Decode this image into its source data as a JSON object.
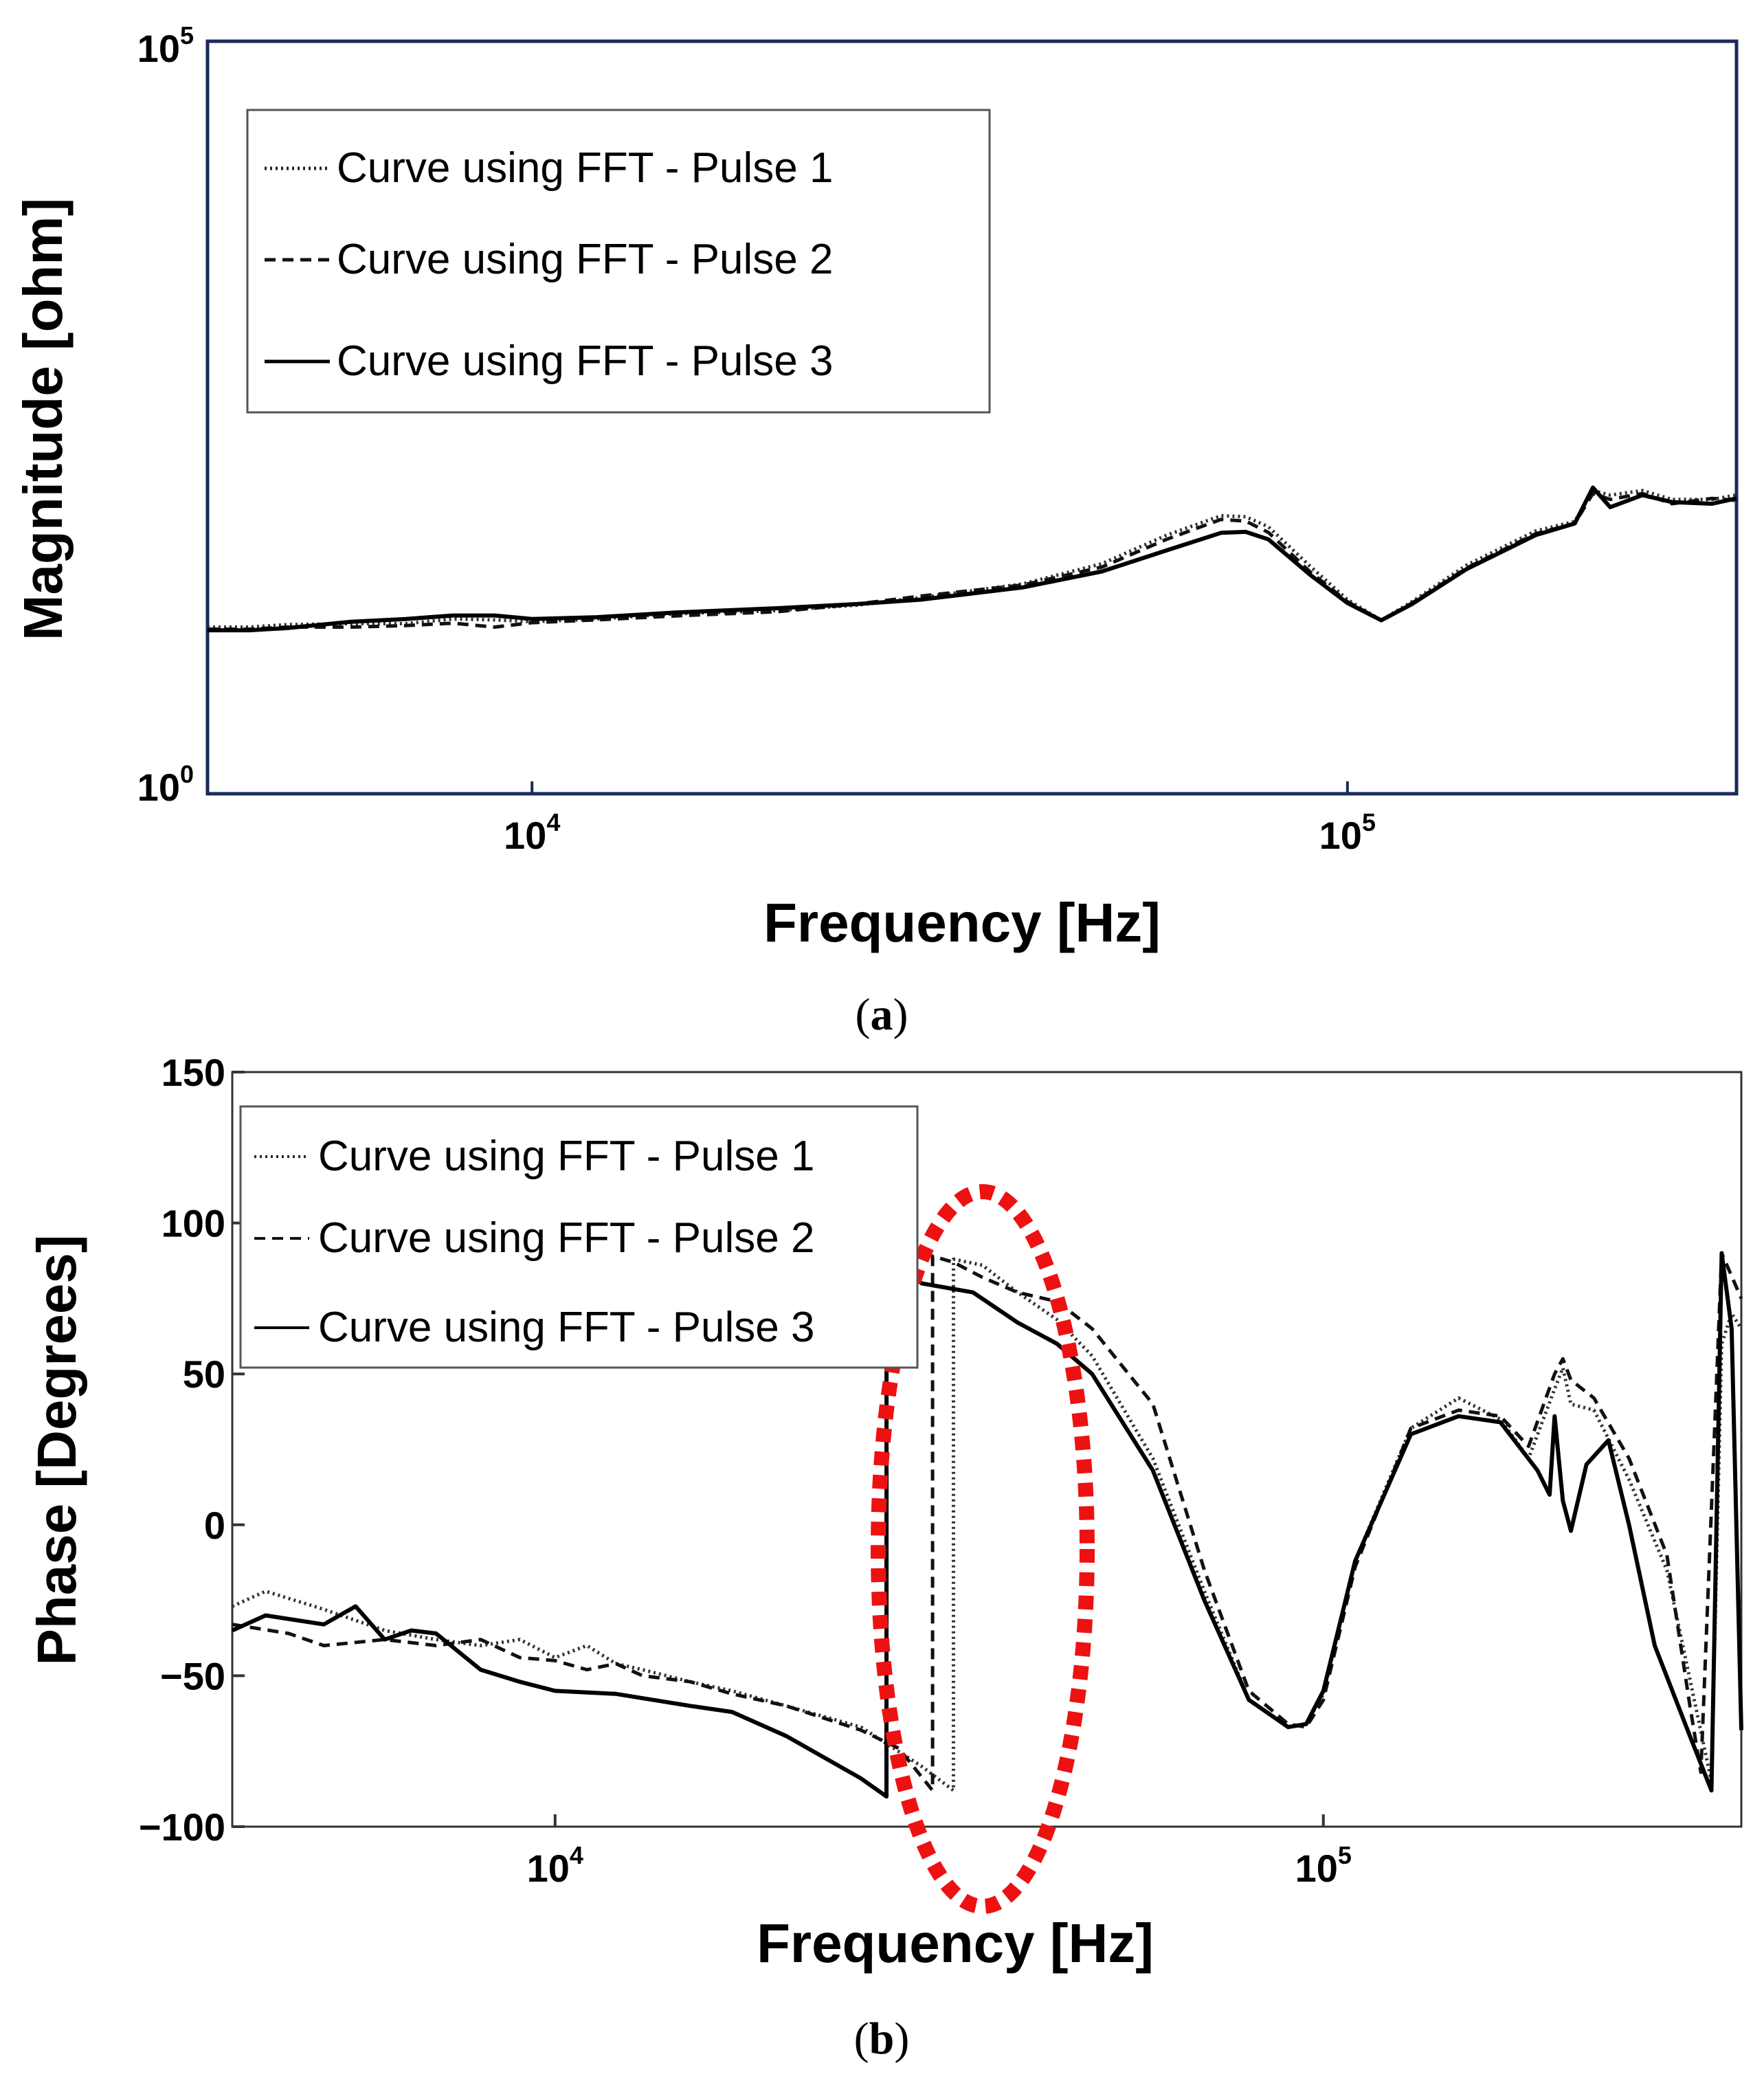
{
  "figure": {
    "captions": [
      "(a)",
      "(b)"
    ]
  },
  "chart_data": [
    {
      "type": "line",
      "panel_label": "(a)",
      "xscale": "log",
      "yscale": "log",
      "xlabel": "Frequency [Hz]",
      "ylabel": "Magnitude [ohm]",
      "xlim": [
        4000,
        300000
      ],
      "ylim": [
        1,
        100000
      ],
      "x_ticks": [
        {
          "base": "10",
          "exp": "4",
          "value": 10000
        },
        {
          "base": "10",
          "exp": "5",
          "value": 100000
        }
      ],
      "y_ticks": [
        {
          "base": "10",
          "exp": "0",
          "value": 1
        },
        {
          "base": "10",
          "exp": "5",
          "value": 100000
        }
      ],
      "legend_position": "top-left",
      "series": [
        {
          "name": "Curve using FFT - Pulse 1",
          "style": "dotted",
          "x": [
            4000,
            4500,
            5000,
            6000,
            7000,
            8000,
            9000,
            10000,
            12000,
            15000,
            20000,
            25000,
            30000,
            40000,
            50000,
            60000,
            70000,
            75000,
            80000,
            90000,
            100000,
            110000,
            120000,
            140000,
            170000,
            190000,
            200000,
            210000,
            230000,
            250000,
            280000,
            300000
          ],
          "y": [
            12.8,
            12.8,
            13.3,
            13.5,
            13.5,
            14.5,
            14.3,
            13.9,
            14.5,
            15.7,
            16.5,
            17.9,
            20.1,
            24.8,
            33.8,
            52.2,
            70.4,
            69.3,
            59.4,
            32.5,
            19.5,
            14.2,
            18.9,
            33.0,
            55.6,
            64.5,
            103.4,
            96.5,
            103.4,
            90.3,
            90.3,
            96.5
          ]
        },
        {
          "name": "Curve using FFT - Pulse 2",
          "style": "dashed",
          "x": [
            4000,
            4500,
            5000,
            6000,
            7000,
            8000,
            9000,
            10000,
            12000,
            15000,
            20000,
            25000,
            30000,
            40000,
            50000,
            60000,
            70000,
            75000,
            80000,
            90000,
            100000,
            110000,
            120000,
            140000,
            170000,
            190000,
            200000,
            210000,
            230000,
            250000,
            280000,
            300000
          ],
          "y": [
            12.4,
            12.4,
            12.8,
            12.8,
            13.1,
            13.6,
            12.8,
            13.7,
            14.3,
            15.2,
            16.2,
            18.2,
            20.6,
            24.4,
            32.1,
            49.0,
            66.5,
            64.8,
            54.5,
            29.8,
            18.9,
            14.2,
            18.5,
            31.6,
            53.4,
            62.5,
            98.9,
            90.3,
            98.9,
            84.5,
            91.7,
            88.9
          ]
        },
        {
          "name": "Curve using FFT - Pulse 3",
          "style": "solid",
          "x": [
            4000,
            4500,
            5000,
            6000,
            7000,
            8000,
            9000,
            10000,
            12000,
            15000,
            20000,
            25000,
            30000,
            40000,
            50000,
            60000,
            70000,
            75000,
            80000,
            90000,
            100000,
            110000,
            120000,
            140000,
            170000,
            190000,
            200000,
            210000,
            230000,
            250000,
            280000,
            300000
          ],
          "y": [
            12.2,
            12.2,
            12.6,
            13.9,
            14.5,
            15.3,
            15.3,
            14.5,
            14.9,
            16.0,
            17.1,
            18.2,
            19.5,
            23.5,
            30.0,
            41.4,
            54.2,
            55.0,
            49.0,
            28.5,
            18.5,
            14.2,
            18.2,
            31.1,
            52.2,
            62.5,
            108.2,
            80.2,
            96.5,
            86.7,
            84.5,
            91.7
          ]
        }
      ]
    },
    {
      "type": "line",
      "panel_label": "(b)",
      "xscale": "log",
      "yscale": "linear",
      "xlabel": "Frequency [Hz]",
      "ylabel": "Phase [Degrees]",
      "xlim": [
        3800,
        350000
      ],
      "ylim": [
        -100,
        150
      ],
      "x_ticks": [
        {
          "base": "10",
          "exp": "4",
          "value": 10000
        },
        {
          "base": "10",
          "exp": "5",
          "value": 100000
        }
      ],
      "y_ticks": [
        {
          "label": "150",
          "value": 150
        },
        {
          "label": "100",
          "value": 100
        },
        {
          "label": "50",
          "value": 50
        },
        {
          "label": "0",
          "value": 0
        },
        {
          "label": "−50",
          "value": -50
        },
        {
          "label": "−100",
          "value": -100
        }
      ],
      "legend_position": "top-left",
      "annotation": "red dotted ellipse around the phase jumps near 30 kHz",
      "series": [
        {
          "name": "Curve using FFT - Pulse 1",
          "style": "dotted",
          "x": [
            3800,
            4200,
            5000,
            6000,
            7000,
            8000,
            9000,
            10000,
            11000,
            12000,
            13000,
            15000,
            17000,
            20000,
            25000,
            30000,
            33000,
            33001,
            36000,
            40000,
            45000,
            50000,
            60000,
            70000,
            80000,
            90000,
            95000,
            100000,
            110000,
            130000,
            150000,
            170000,
            185000,
            200000,
            205000,
            210000,
            225000,
            250000,
            280000,
            320000,
            330000,
            340000,
            350000
          ],
          "y": [
            -27,
            -22,
            -28,
            -35,
            -38,
            -40,
            -38,
            -44,
            -40,
            -46,
            -48,
            -52,
            -55,
            -60,
            -67,
            -80,
            -88,
            88,
            86,
            77,
            68,
            56,
            22,
            -22,
            -58,
            -67,
            -66,
            -56,
            -12,
            32,
            42,
            35,
            22,
            45,
            52,
            40,
            38,
            15,
            -15,
            -85,
            60,
            70,
            65
          ]
        },
        {
          "name": "Curve using FFT - Pulse 2",
          "style": "dashed",
          "x": [
            3800,
            4500,
            5000,
            6000,
            7000,
            8000,
            9000,
            10000,
            11000,
            12000,
            13000,
            15000,
            17000,
            20000,
            25000,
            28000,
            31000,
            31001,
            33000,
            36000,
            40000,
            45000,
            50000,
            60000,
            70000,
            80000,
            90000,
            95000,
            100000,
            110000,
            130000,
            150000,
            170000,
            185000,
            200000,
            205000,
            210000,
            225000,
            250000,
            280000,
            300000,
            310000,
            330000,
            350000
          ],
          "y": [
            -33,
            -36,
            -40,
            -38,
            -40,
            -38,
            -44,
            -45,
            -48,
            -46,
            -50,
            -52,
            -56,
            -60,
            -68,
            -74,
            -88,
            89,
            87,
            82,
            77,
            74,
            65,
            40,
            -15,
            -55,
            -66,
            -67,
            -58,
            -14,
            32,
            38,
            36,
            26,
            50,
            55,
            48,
            42,
            22,
            -10,
            -60,
            -82,
            90,
            75
          ]
        },
        {
          "name": "Curve using FFT - Pulse 3",
          "style": "solid",
          "x": [
            3800,
            4200,
            5000,
            5500,
            6000,
            6500,
            7000,
            8000,
            9000,
            10000,
            12000,
            15000,
            17000,
            20000,
            25000,
            27000,
            27001,
            30000,
            35000,
            40000,
            45000,
            50000,
            60000,
            70000,
            80000,
            90000,
            95000,
            100000,
            110000,
            130000,
            150000,
            170000,
            190000,
            197000,
            200000,
            205000,
            210000,
            220000,
            235000,
            250000,
            270000,
            300000,
            320000,
            330000,
            340000,
            350000
          ],
          "y": [
            -35,
            -30,
            -33,
            -27,
            -38,
            -35,
            -36,
            -48,
            -52,
            -55,
            -56,
            -60,
            -62,
            -70,
            -84,
            -90,
            89,
            80,
            77,
            67,
            60,
            50,
            18,
            -25,
            -58,
            -67,
            -66,
            -55,
            -12,
            30,
            36,
            34,
            18,
            10,
            36,
            8,
            -2,
            20,
            28,
            0,
            -40,
            -70,
            -88,
            90,
            65,
            -68
          ]
        }
      ]
    }
  ]
}
